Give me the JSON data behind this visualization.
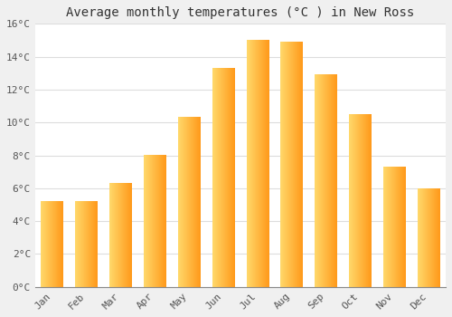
{
  "title": "Average monthly temperatures (°C ) in New Ross",
  "months": [
    "Jan",
    "Feb",
    "Mar",
    "Apr",
    "May",
    "Jun",
    "Jul",
    "Aug",
    "Sep",
    "Oct",
    "Nov",
    "Dec"
  ],
  "values": [
    5.2,
    5.2,
    6.3,
    8.0,
    10.3,
    13.3,
    15.0,
    14.9,
    12.9,
    10.5,
    7.3,
    6.0
  ],
  "bar_color_left": "#FFD060",
  "bar_color_right": "#FFA500",
  "ylim": [
    0,
    16
  ],
  "yticks": [
    0,
    2,
    4,
    6,
    8,
    10,
    12,
    14,
    16
  ],
  "ytick_labels": [
    "0°C",
    "2°C",
    "4°C",
    "6°C",
    "8°C",
    "10°C",
    "12°C",
    "14°C",
    "16°C"
  ],
  "background_color": "#f0f0f0",
  "plot_bg_color": "#ffffff",
  "grid_color": "#dddddd",
  "title_fontsize": 10,
  "tick_fontsize": 8,
  "bar_width": 0.65
}
